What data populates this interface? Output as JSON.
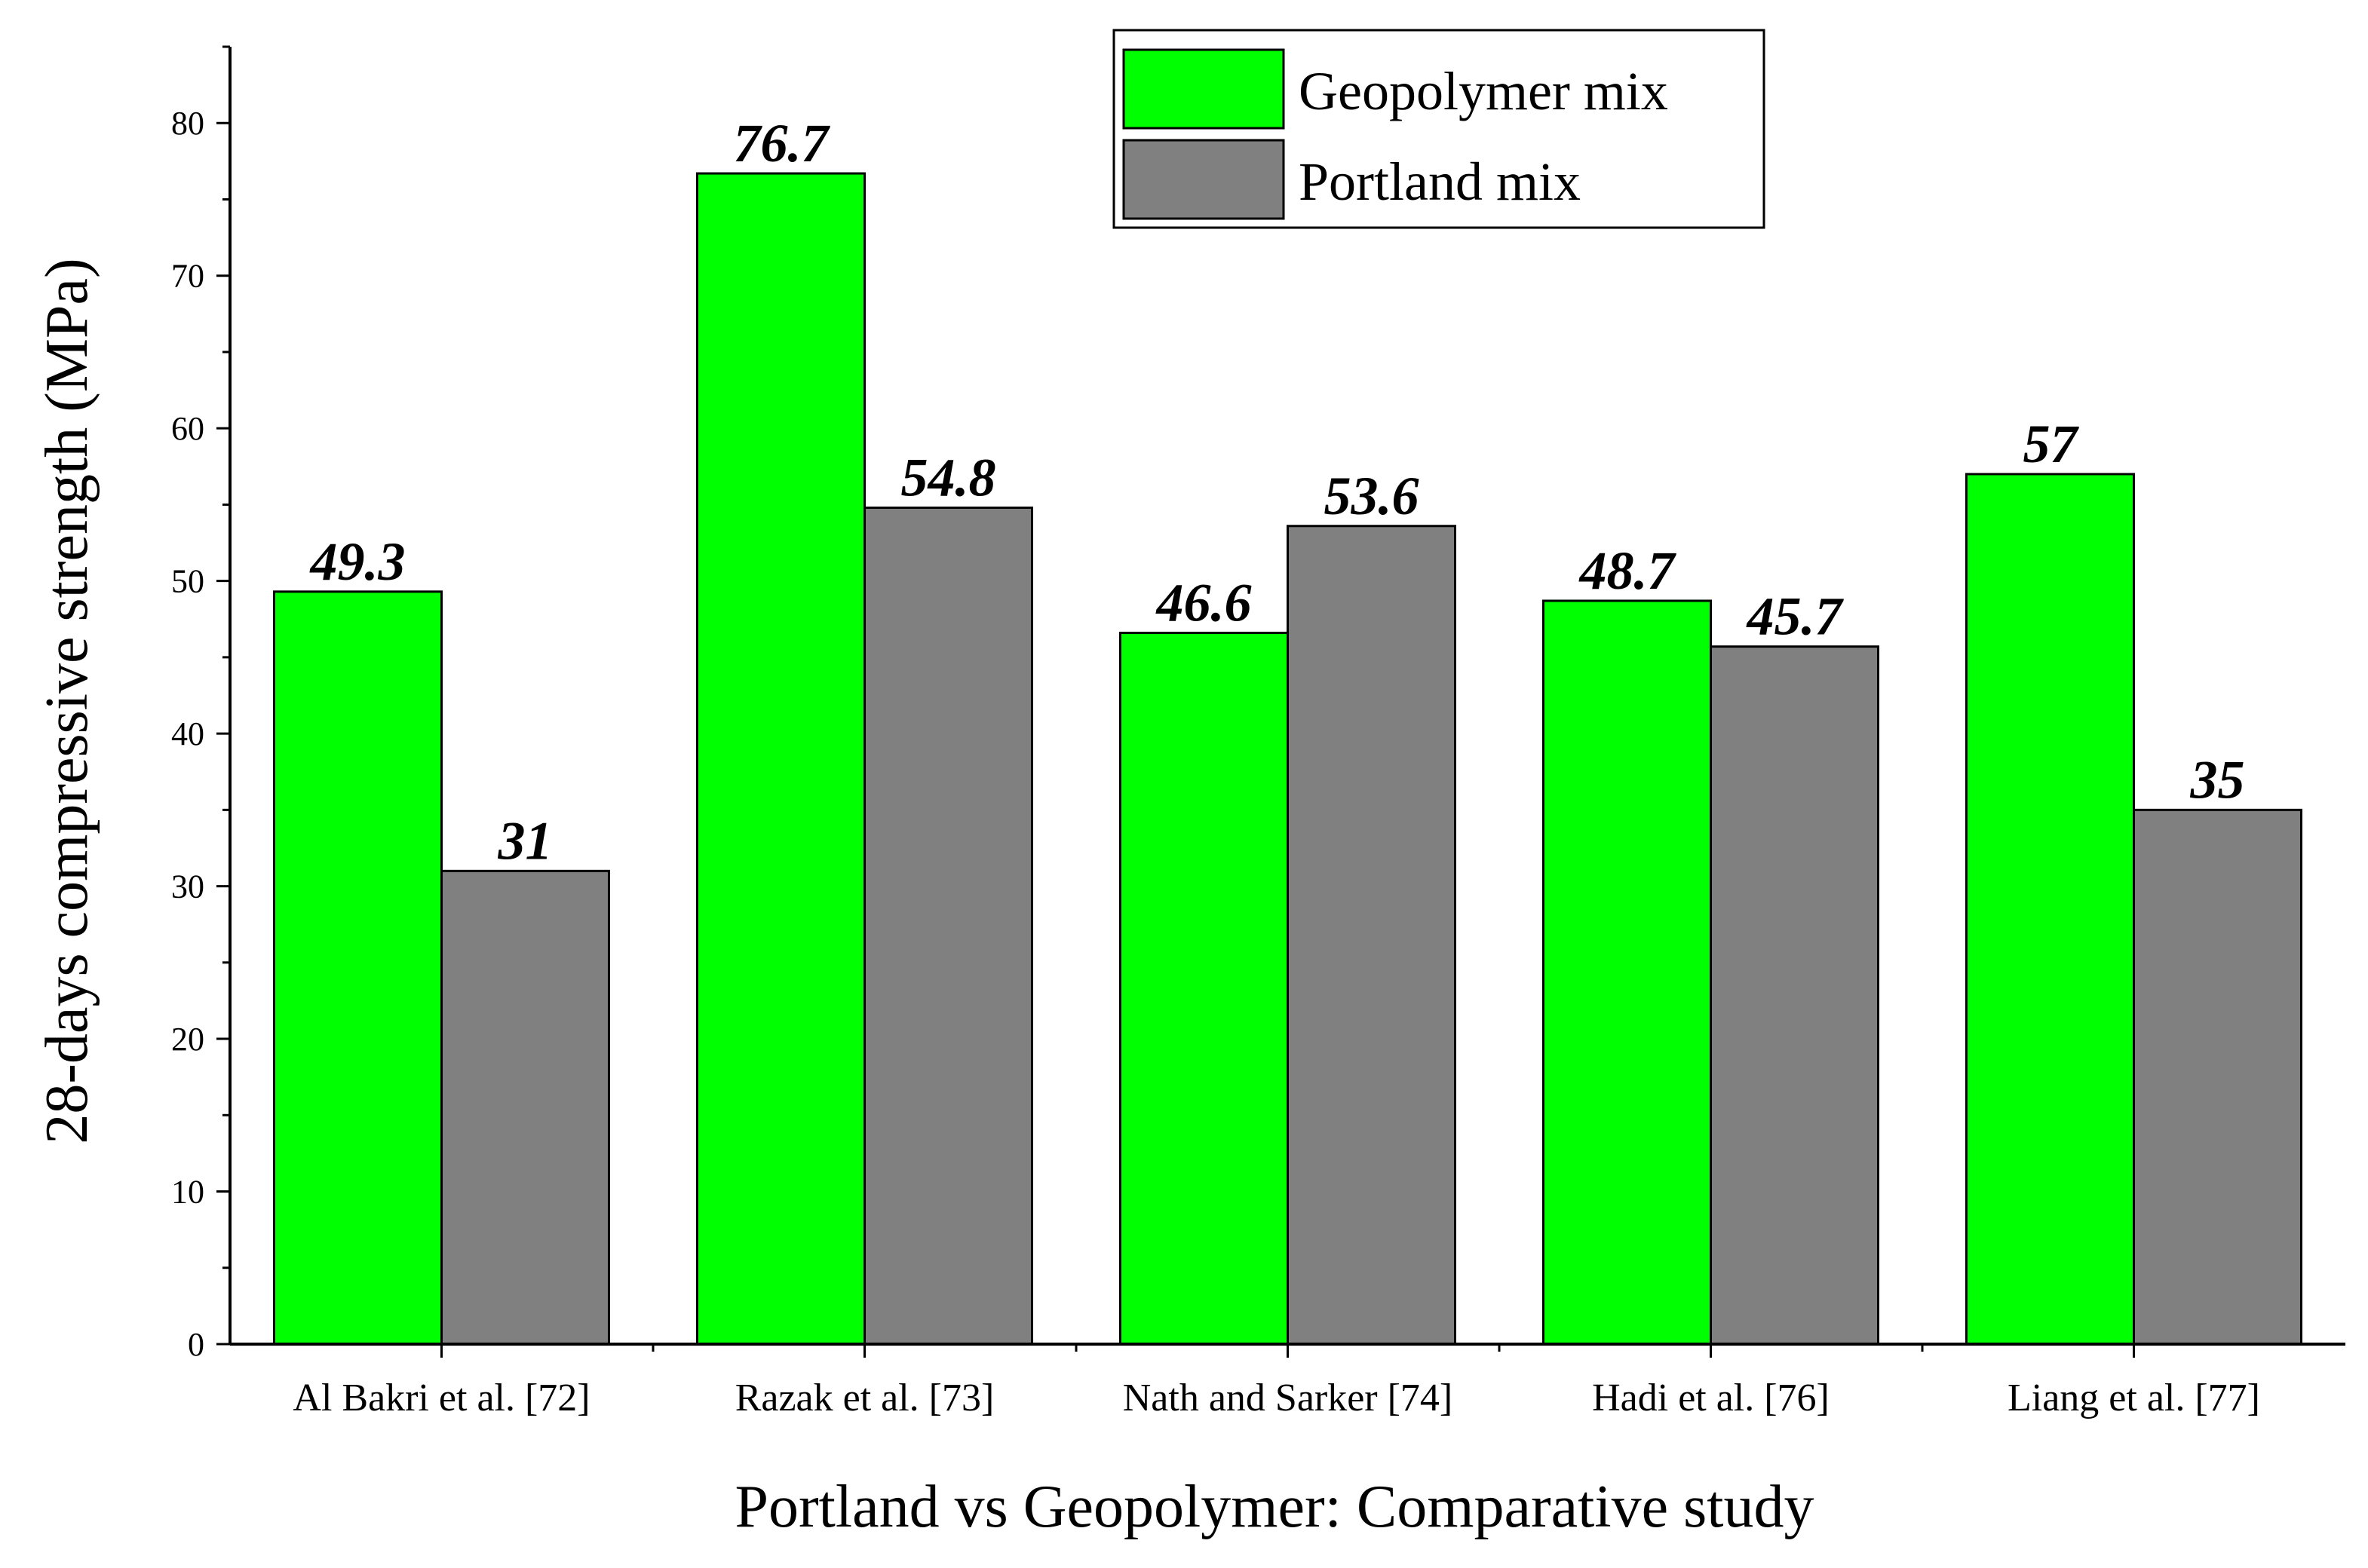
{
  "chart_data": {
    "type": "bar",
    "title": "",
    "xlabel": "Portland vs Geopolymer: Comparative study",
    "ylabel": "28-days compressive strength (MPa)",
    "ylim": [
      0,
      85
    ],
    "yticks": [
      0,
      10,
      20,
      30,
      40,
      50,
      60,
      70,
      80
    ],
    "categories": [
      "Al Bakri et al. [72]",
      "Razak et al. [73]",
      "Nath and Sarker [74]",
      "Hadi et al. [76]",
      "Liang et al. [77]"
    ],
    "series": [
      {
        "name": "Geopolymer mix",
        "color": "#00ff00",
        "values": [
          49.3,
          76.7,
          46.6,
          48.7,
          57
        ],
        "labels": [
          "49.3",
          "76.7",
          "46.6",
          "48.7",
          "57"
        ]
      },
      {
        "name": "Portland mix",
        "color": "#808080",
        "values": [
          31,
          54.8,
          53.6,
          45.7,
          35
        ],
        "labels": [
          "31",
          "54.8",
          "53.6",
          "45.7",
          "35"
        ]
      }
    ],
    "grid": false,
    "legend_position": "top-right",
    "data_labels": true
  }
}
